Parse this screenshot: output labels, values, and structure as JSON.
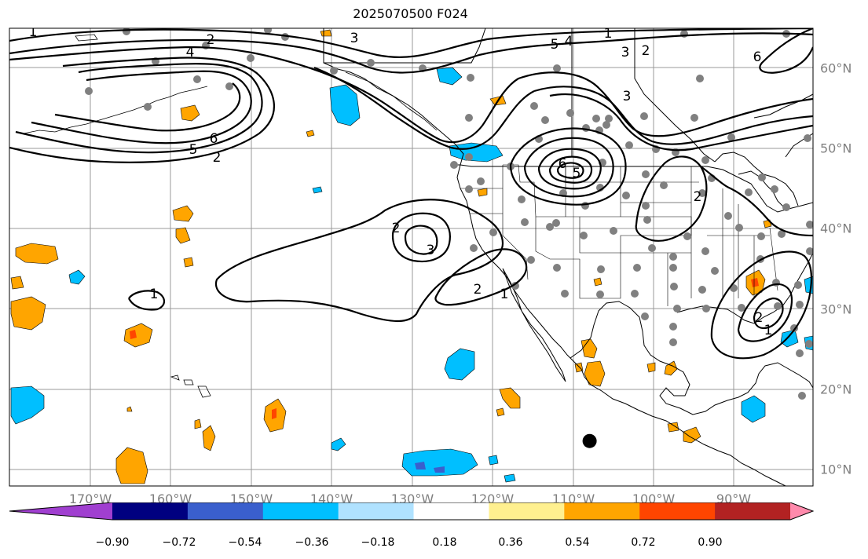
{
  "title": "2025070500 F024",
  "map": {
    "projection": "equirectangular",
    "lon_range": [
      -180,
      -80
    ],
    "lat_range": [
      8,
      65
    ],
    "grid": true,
    "lon_labels": [
      "170°W",
      "160°W",
      "150°W",
      "140°W",
      "130°W",
      "120°W",
      "110°W",
      "100°W",
      "90°W"
    ],
    "lat_labels": [
      "60°N",
      "50°N",
      "40°N",
      "30°N",
      "20°N",
      "10°N"
    ],
    "contour_labels": [
      "1",
      "2",
      "4",
      "3",
      "5",
      "4",
      "1",
      "3",
      "2",
      "6",
      "6",
      "5",
      "2",
      "6",
      "5",
      "2",
      "3",
      "2",
      "1",
      "2",
      "1",
      "1",
      "2",
      "3"
    ],
    "marker": {
      "lon": -107.8,
      "lat": 13.6,
      "color": "#000000"
    }
  },
  "colorbar": {
    "colors": [
      "#a03fd0",
      "#000080",
      "#3a5fcd",
      "#00bfff",
      "#b0e2ff",
      "#ffffff",
      "#fff08f",
      "#ffa500",
      "#ff4500",
      "#b22222",
      "#ff8aac"
    ],
    "ticks": [
      "−0.90",
      "−0.72",
      "−0.54",
      "−0.36",
      "−0.18",
      "0.18",
      "0.36",
      "0.54",
      "0.72",
      "0.90"
    ]
  }
}
